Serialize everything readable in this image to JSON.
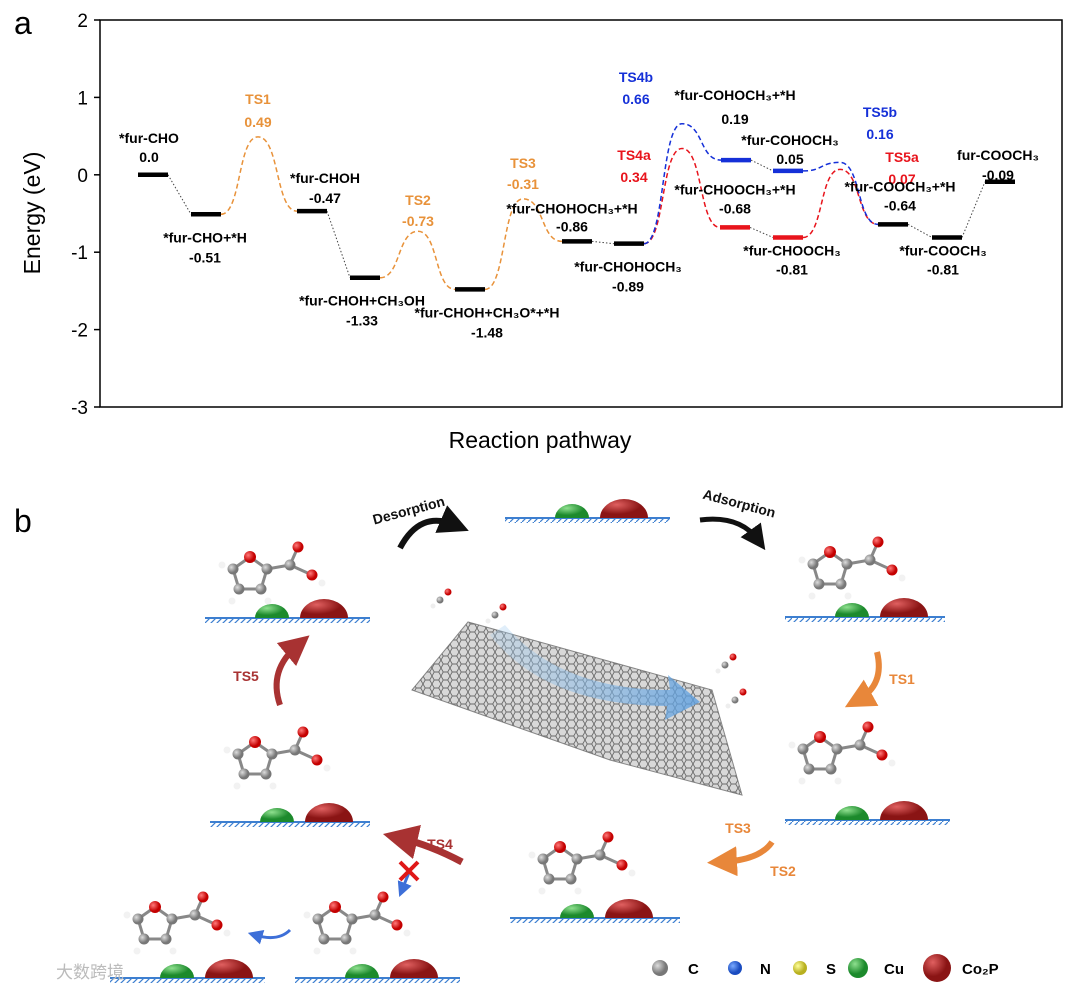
{
  "chart_data": {
    "type": "energy_profile",
    "panel": "a",
    "ylabel": "Energy (eV)",
    "xlabel": "Reaction pathway",
    "ylim": [
      -3,
      2
    ],
    "yticks": [
      -3,
      -2,
      -1,
      0,
      1,
      2
    ],
    "states": [
      {
        "name": "*fur-CHO",
        "value": 0.0,
        "value_label": "0.0",
        "color": "#000000"
      },
      {
        "name": "*fur-CHO+*H",
        "value": -0.51,
        "value_label": "-0.51",
        "color": "#000000"
      },
      {
        "name": "*fur-CHOH",
        "value": -0.47,
        "value_label": "-0.47",
        "color": "#000000"
      },
      {
        "name": "*fur-CHOH+CH₃OH",
        "value": -1.33,
        "value_label": "-1.33",
        "color": "#000000"
      },
      {
        "name": "*fur-CHOH+CH₃O*+*H",
        "value": -1.48,
        "value_label": "-1.48",
        "color": "#000000"
      },
      {
        "name": "*fur-CHOHOCH₃+*H",
        "value": -0.86,
        "value_label": "-0.86",
        "color": "#000000"
      },
      {
        "name": "*fur-CHOHOCH₃",
        "value": -0.89,
        "value_label": "-0.89",
        "color": "#000000"
      },
      {
        "name": "*fur-COHOCH₃+*H",
        "value": 0.19,
        "value_label": "0.19",
        "color": "#1530d8"
      },
      {
        "name": "*fur-COHOCH₃",
        "value": 0.05,
        "value_label": "0.05",
        "color": "#1530d8"
      },
      {
        "name": "*fur-CHOOCH₃+*H",
        "value": -0.68,
        "value_label": "-0.68",
        "color": "#e8141c"
      },
      {
        "name": "*fur-CHOOCH₃",
        "value": -0.81,
        "value_label": "-0.81",
        "color": "#e8141c"
      },
      {
        "name": "*fur-COOCH₃+*H",
        "value": -0.64,
        "value_label": "-0.64",
        "color": "#000000"
      },
      {
        "name": "*fur-COOCH₃",
        "value": -0.81,
        "value_label": "-0.81",
        "color": "#000000"
      },
      {
        "name": "fur-COOCH₃",
        "value": -0.09,
        "value_label": "-0.09",
        "color": "#000000"
      }
    ],
    "transition_states": [
      {
        "name": "TS1",
        "value": 0.49,
        "value_label": "0.49",
        "color": "#e8923a"
      },
      {
        "name": "TS2",
        "value": -0.73,
        "value_label": "-0.73",
        "color": "#e8923a"
      },
      {
        "name": "TS3",
        "value": -0.31,
        "value_label": "-0.31",
        "color": "#e8923a"
      },
      {
        "name": "TS4a",
        "value": 0.34,
        "value_label": "0.34",
        "color": "#e8141c"
      },
      {
        "name": "TS4b",
        "value": 0.66,
        "value_label": "0.66",
        "color": "#1530d8"
      },
      {
        "name": "TS5a",
        "value": 0.07,
        "value_label": "0.07",
        "color": "#e8141c"
      },
      {
        "name": "TS5b",
        "value": 0.16,
        "value_label": "0.16",
        "color": "#1530d8"
      }
    ]
  },
  "scheme": {
    "panel": "b",
    "desorption": "Desorption",
    "adsorption": "Adsorption",
    "steps": [
      "TS1",
      "TS2",
      "TS3",
      "TS4",
      "TS5"
    ],
    "legend": [
      "C",
      "N",
      "S",
      "Cu",
      "Co₂P"
    ],
    "watermark": "大数跨境"
  }
}
